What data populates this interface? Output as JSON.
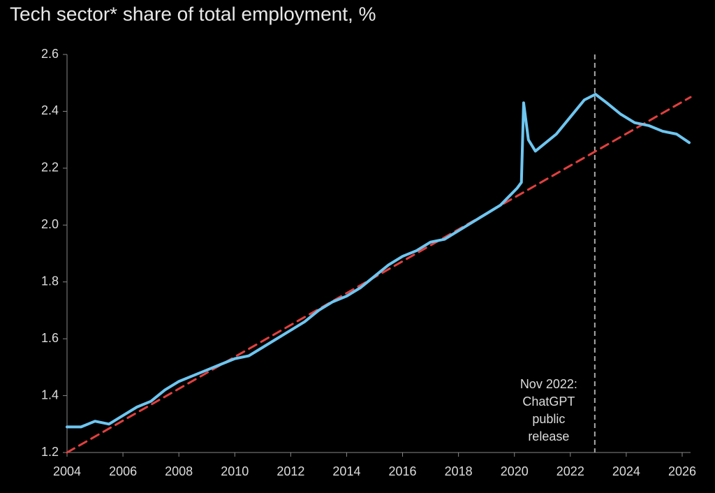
{
  "chart_data": {
    "type": "line",
    "title": "Tech sector* share of total employment, %",
    "xlim": [
      2004,
      2026.3
    ],
    "xticks": [
      2004,
      2006,
      2008,
      2010,
      2012,
      2014,
      2016,
      2018,
      2020,
      2022,
      2024,
      2026
    ],
    "ylim": [
      1.2,
      2.6
    ],
    "yticks": [
      {
        "value": 1.2,
        "label": "1.2"
      },
      {
        "value": 1.4,
        "label": "1.4"
      },
      {
        "value": 1.6,
        "label": "1.6"
      },
      {
        "value": 1.8,
        "label": "1.8"
      },
      {
        "value": 2.0,
        "label": "2.0"
      },
      {
        "value": 2.2,
        "label": "2.2"
      },
      {
        "value": 2.4,
        "label": "2.4"
      },
      {
        "value": 2.6,
        "label": "2.6"
      }
    ],
    "series": [
      {
        "color": "#6ec6f0",
        "dashed": false,
        "x": [
          2004.0,
          2004.5,
          2005.0,
          2005.5,
          2006.0,
          2006.5,
          2007.0,
          2007.5,
          2008.0,
          2008.5,
          2009.0,
          2009.5,
          2010.0,
          2010.5,
          2011.0,
          2011.5,
          2012.0,
          2012.5,
          2013.0,
          2013.5,
          2014.0,
          2014.5,
          2015.0,
          2015.5,
          2016.0,
          2016.5,
          2017.0,
          2017.5,
          2018.0,
          2018.5,
          2019.0,
          2019.5,
          2019.8,
          2020.1,
          2020.25,
          2020.33,
          2020.5,
          2020.75,
          2021.0,
          2021.5,
          2022.0,
          2022.5,
          2022.9,
          2023.3,
          2023.8,
          2024.3,
          2024.8,
          2025.3,
          2025.8,
          2026.25
        ],
        "values": [
          1.29,
          1.29,
          1.31,
          1.3,
          1.33,
          1.36,
          1.38,
          1.42,
          1.45,
          1.47,
          1.49,
          1.51,
          1.53,
          1.54,
          1.57,
          1.6,
          1.63,
          1.66,
          1.7,
          1.73,
          1.75,
          1.78,
          1.82,
          1.86,
          1.89,
          1.91,
          1.94,
          1.95,
          1.98,
          2.01,
          2.04,
          2.07,
          2.1,
          2.13,
          2.15,
          2.43,
          2.3,
          2.26,
          2.28,
          2.32,
          2.38,
          2.44,
          2.46,
          2.43,
          2.39,
          2.36,
          2.35,
          2.33,
          2.32,
          2.29
        ]
      },
      {
        "color": "#e0403f",
        "dashed": true,
        "x": [
          2004.0,
          2026.3
        ],
        "values": [
          1.2,
          2.45
        ]
      }
    ],
    "annotation": {
      "x": 2022.875,
      "lines": [
        "Nov 2022:",
        "ChatGPT",
        "public",
        "release"
      ]
    }
  }
}
